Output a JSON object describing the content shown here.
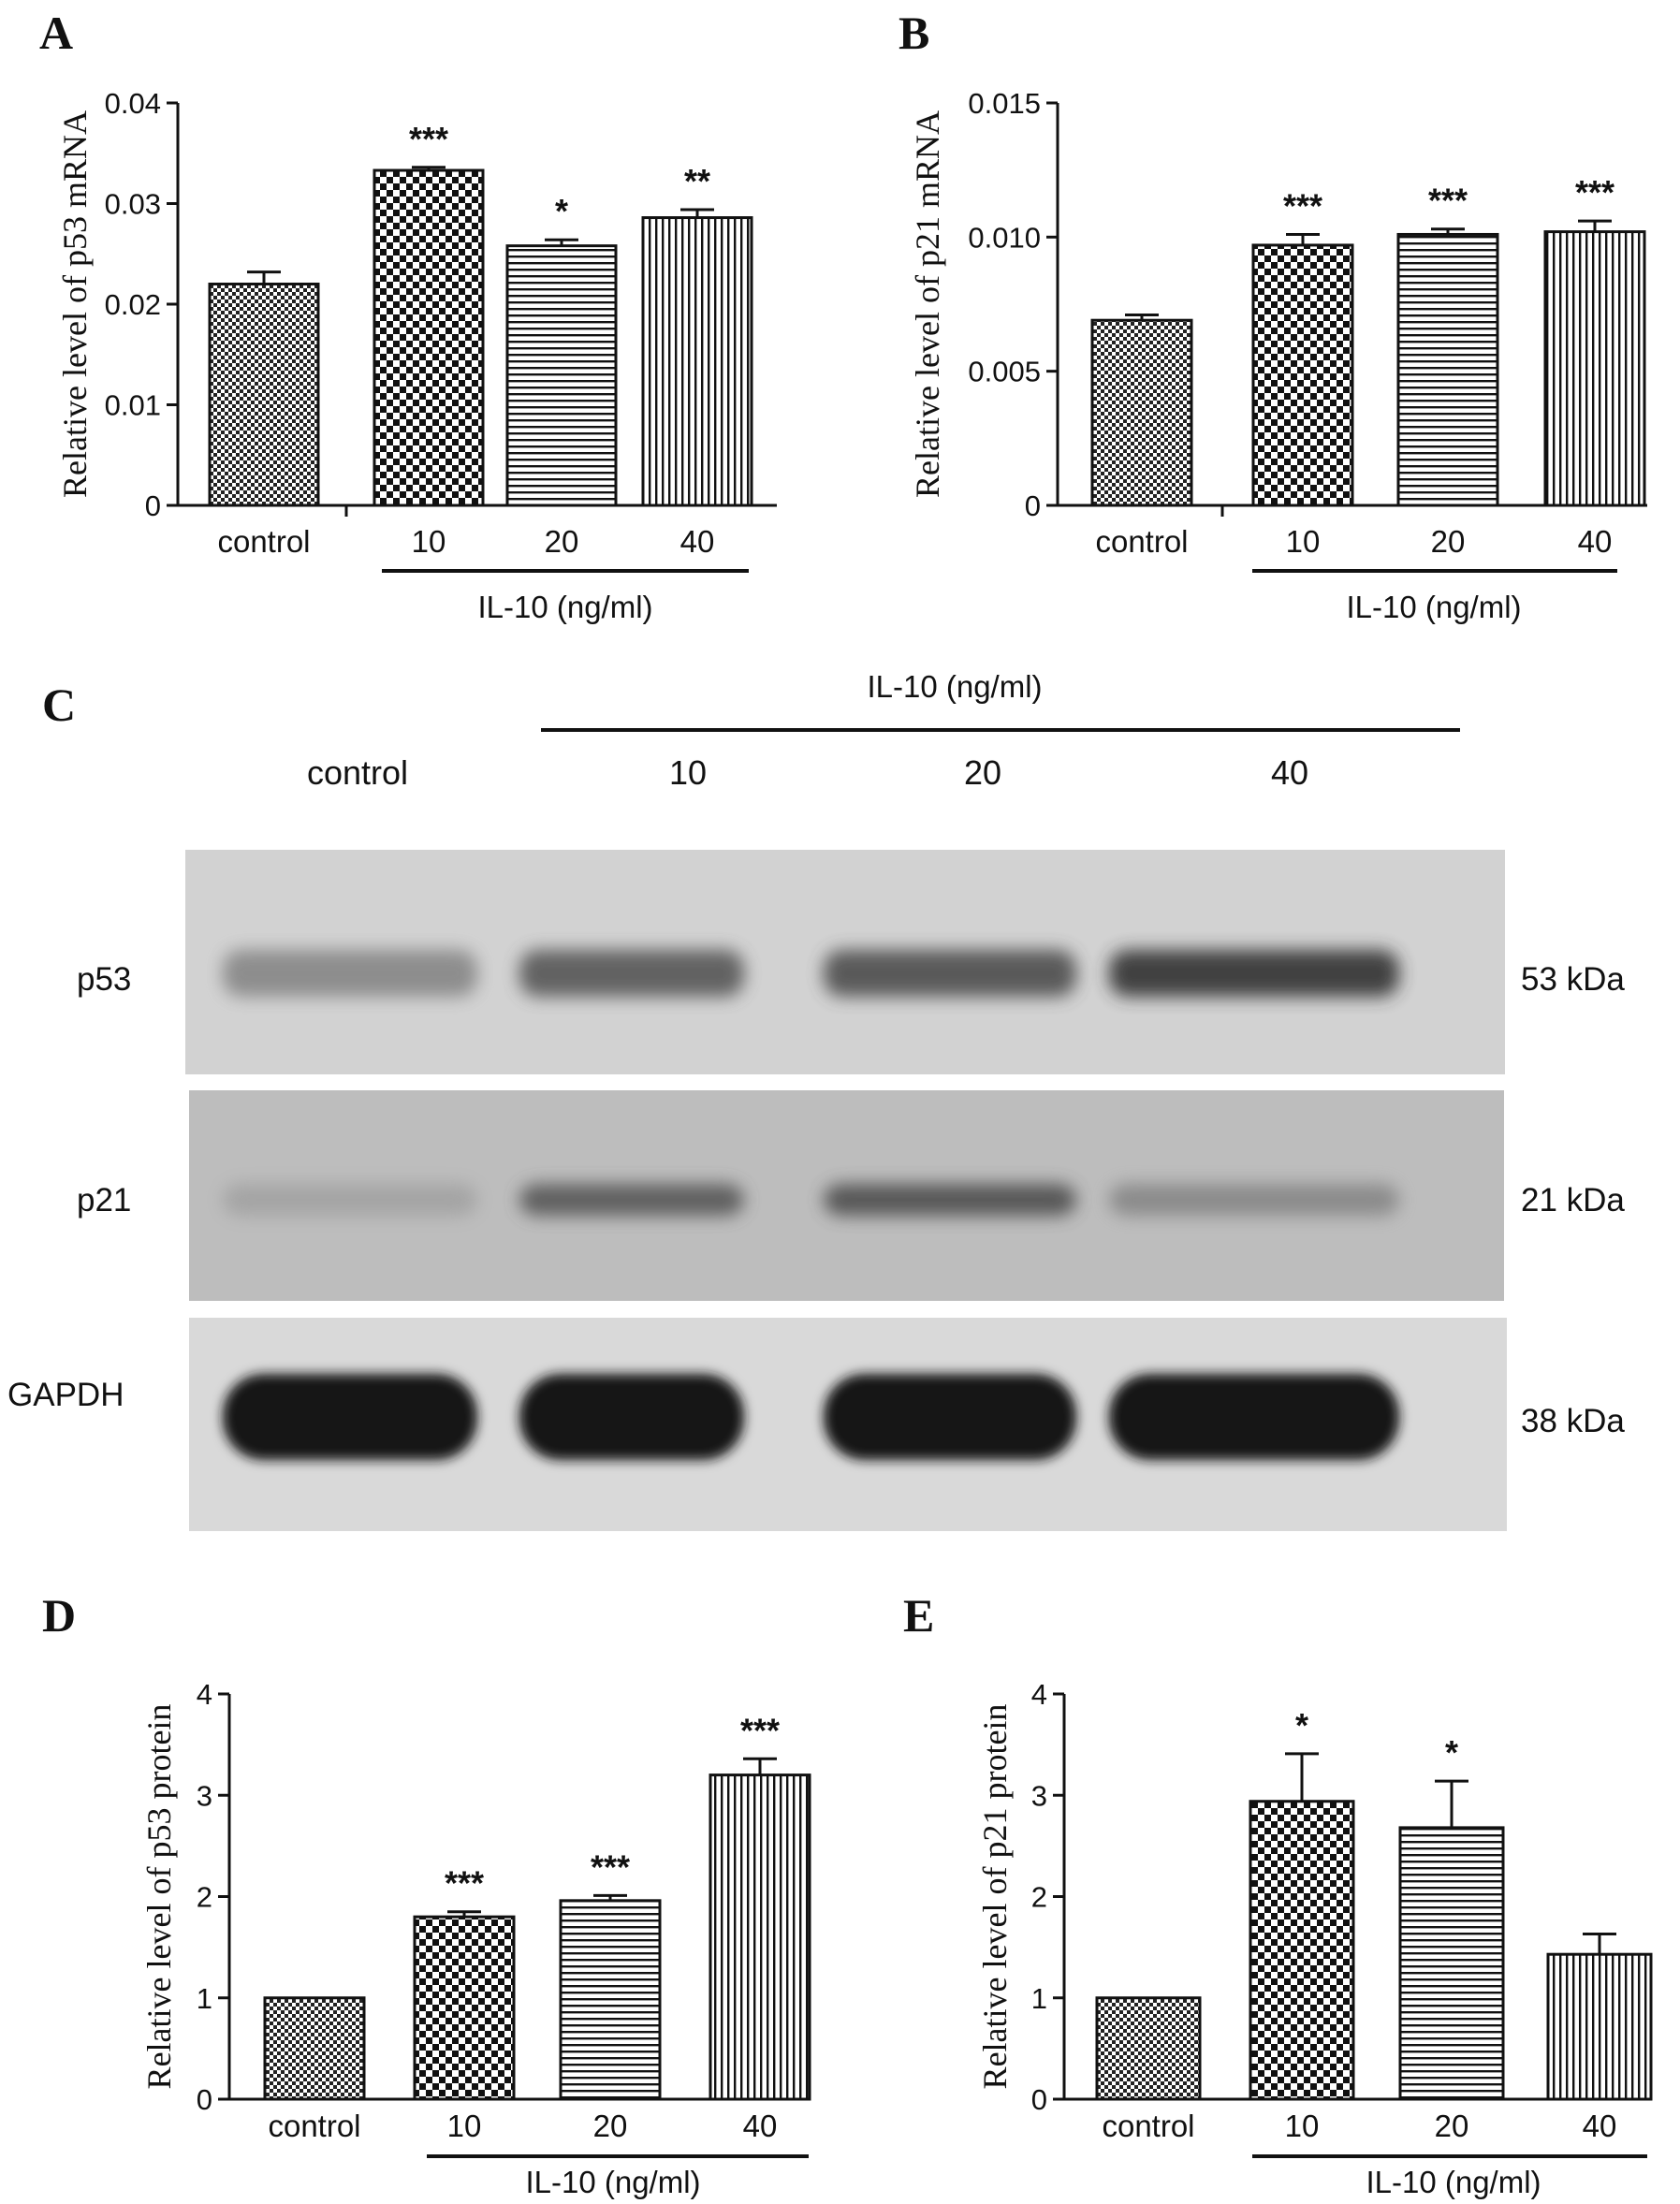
{
  "panels": {
    "A": "A",
    "B": "B",
    "C": "C",
    "D": "D",
    "E": "E"
  },
  "chart_data": [
    {
      "panel": "A",
      "type": "bar",
      "categories": [
        "control",
        "10",
        "20",
        "40"
      ],
      "values": [
        0.022,
        0.0333,
        0.0258,
        0.0286
      ],
      "errors": [
        0.0012,
        0.0003,
        0.0006,
        0.0008
      ],
      "significance": [
        "",
        "***",
        "*",
        "**"
      ],
      "patterns": [
        "fine-check",
        "checker",
        "hlines",
        "vlines"
      ],
      "ylabel": "Relative level of p53 mRNA",
      "yticks": [
        "0",
        "0.01",
        "0.02",
        "0.03",
        "0.04"
      ],
      "ylim": [
        0,
        0.04
      ],
      "group_label": "IL-10 (ng/ml)"
    },
    {
      "panel": "B",
      "type": "bar",
      "categories": [
        "control",
        "10",
        "20",
        "40"
      ],
      "values": [
        0.0069,
        0.0097,
        0.0101,
        0.0102
      ],
      "errors": [
        0.0002,
        0.0004,
        0.0002,
        0.0004
      ],
      "significance": [
        "",
        "***",
        "***",
        "***"
      ],
      "patterns": [
        "fine-check",
        "checker",
        "hlines",
        "vlines"
      ],
      "ylabel": "Relative level of p21 mRNA",
      "yticks": [
        "0",
        "0.005",
        "0.010",
        "0.015"
      ],
      "ylim": [
        0,
        0.015
      ],
      "group_label": "IL-10 (ng/ml)"
    },
    {
      "panel": "D",
      "type": "bar",
      "categories": [
        "control",
        "10",
        "20",
        "40"
      ],
      "values": [
        1.0,
        1.8,
        1.96,
        3.2
      ],
      "errors": [
        0,
        0.05,
        0.05,
        0.16
      ],
      "significance": [
        "",
        "***",
        "***",
        "***"
      ],
      "patterns": [
        "fine-check",
        "checker",
        "hlines",
        "vlines"
      ],
      "ylabel": "Relative level of p53 protein",
      "yticks": [
        "0",
        "1",
        "2",
        "3",
        "4"
      ],
      "ylim": [
        0,
        4
      ],
      "group_label": "IL-10 (ng/ml)"
    },
    {
      "panel": "E",
      "type": "bar",
      "categories": [
        "control",
        "10",
        "20",
        "40"
      ],
      "values": [
        1.0,
        2.94,
        2.68,
        1.43
      ],
      "errors": [
        0,
        0.47,
        0.46,
        0.2
      ],
      "significance": [
        "",
        "*",
        "*",
        ""
      ],
      "patterns": [
        "fine-check",
        "checker",
        "hlines",
        "vlines"
      ],
      "ylabel": "Relative level of p21 protein",
      "yticks": [
        "0",
        "1",
        "2",
        "3",
        "4"
      ],
      "ylim": [
        0,
        4
      ],
      "group_label": "IL-10 (ng/ml)"
    }
  ],
  "blot": {
    "group_label": "IL-10 (ng/ml)",
    "lanes": [
      "control",
      "10",
      "20",
      "40"
    ],
    "rows": [
      {
        "protein": "p53",
        "size": "53 kDa",
        "band_intensity": [
          0.35,
          0.6,
          0.65,
          0.8
        ]
      },
      {
        "protein": "p21",
        "size": "21 kDa",
        "band_intensity": [
          0.2,
          0.6,
          0.65,
          0.35
        ]
      },
      {
        "protein": "GAPDH",
        "size": "38 kDa",
        "band_intensity": [
          0.95,
          0.95,
          0.95,
          0.92
        ]
      }
    ]
  },
  "colors": {
    "ink": "#111111",
    "blot_light": "#d4d4d4",
    "blot_mid": "#b8b8b8",
    "blot_dark": "#d8d8d8"
  }
}
